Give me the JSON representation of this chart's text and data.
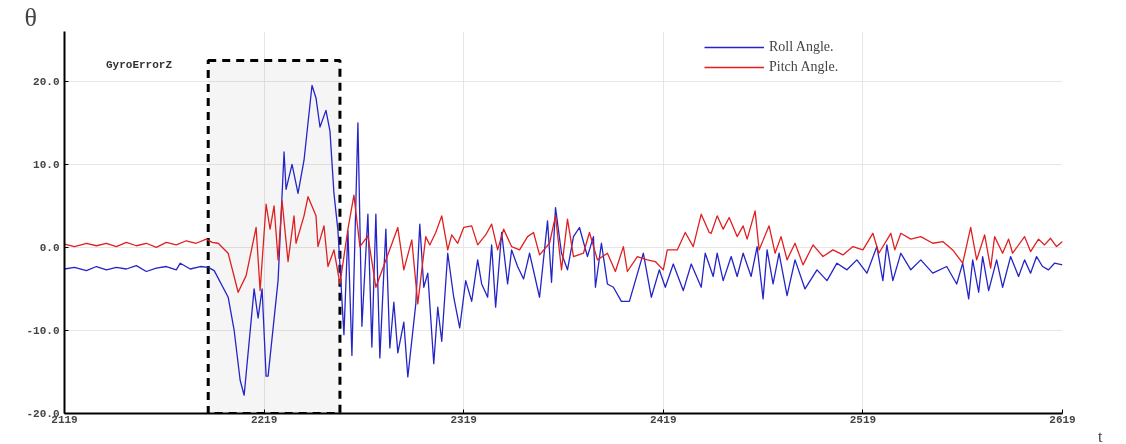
{
  "chart_data": {
    "type": "line",
    "xlabel": "t",
    "ylabel": "θ",
    "annotations": [
      "GyroErrorZ"
    ],
    "xlim": [
      2119,
      2619
    ],
    "ylim": [
      -20,
      26
    ],
    "xticks": [
      2119,
      2219,
      2319,
      2419,
      2519,
      2619
    ],
    "yticks": [
      {
        "value": -20,
        "label": "-20.0"
      },
      {
        "value": -10,
        "label": "-10.0"
      },
      {
        "value": 0,
        "label": "0.0"
      },
      {
        "value": 10,
        "label": "10.0"
      },
      {
        "value": 20,
        "label": "20.0"
      }
    ],
    "grid": true,
    "legend": "top",
    "line_style": "solid",
    "bands": [
      {
        "axis": "x",
        "from": 2191,
        "to": 2257,
        "color": "#000000"
      }
    ],
    "series": [
      {
        "name": "Roll Angle.",
        "color": "#2424c8",
        "x": [
          2119,
          2124,
          2130,
          2135,
          2140,
          2145,
          2150,
          2155,
          2160,
          2165,
          2170,
          2175,
          2177,
          2182,
          2187,
          2191,
          2194,
          2201,
          2204,
          2207,
          2209,
          2214,
          2216,
          2218,
          2220,
          2221,
          2226,
          2229,
          2230,
          2233,
          2236,
          2239,
          2243,
          2245,
          2247,
          2250,
          2252,
          2254,
          2256,
          2259,
          2261,
          2263,
          2266,
          2268,
          2271,
          2273,
          2275,
          2277,
          2280,
          2282,
          2284,
          2286,
          2289,
          2291,
          2295,
          2297,
          2299,
          2301,
          2304,
          2306,
          2308,
          2311,
          2314,
          2317,
          2320,
          2323,
          2326,
          2328,
          2331,
          2333,
          2335,
          2338,
          2341,
          2343,
          2346,
          2349,
          2352,
          2357,
          2361,
          2363,
          2365,
          2368,
          2371,
          2374,
          2377,
          2381,
          2384,
          2385,
          2388,
          2391,
          2394,
          2398,
          2402,
          2409,
          2413,
          2417,
          2420,
          2424,
          2429,
          2433,
          2438,
          2440,
          2444,
          2446,
          2449,
          2453,
          2456,
          2459,
          2463,
          2466,
          2469,
          2471,
          2474,
          2477,
          2481,
          2485,
          2490,
          2496,
          2501,
          2506,
          2511,
          2516,
          2521,
          2526,
          2529,
          2531,
          2534,
          2538,
          2543,
          2548,
          2554,
          2561,
          2566,
          2569,
          2572,
          2574,
          2577,
          2579,
          2582,
          2586,
          2589,
          2593,
          2597,
          2600,
          2603,
          2606,
          2609,
          2612,
          2615,
          2619
        ],
        "values": [
          -2.6,
          -2.4,
          -2.8,
          -2.3,
          -2.7,
          -2.4,
          -2.6,
          -2.2,
          -2.9,
          -2.5,
          -2.3,
          -2.7,
          -1.9,
          -2.6,
          -2.3,
          -2.4,
          -2.8,
          -6,
          -10,
          -16,
          -17.8,
          -5,
          -8.5,
          -5,
          -15.5,
          -15.5,
          -4,
          11.5,
          7,
          10,
          6.5,
          10.5,
          19.5,
          18,
          14.5,
          16.5,
          14,
          6.5,
          2,
          -10.5,
          2,
          -13,
          15,
          -9.5,
          4,
          -12,
          4,
          -13.3,
          2.2,
          -12.1,
          -6.6,
          -12.7,
          -9,
          -15.6,
          -6.8,
          2.8,
          -4.8,
          -3.1,
          -14,
          -7.2,
          -11.3,
          -0.7,
          -6,
          -9.7,
          -4,
          -6.5,
          -1.5,
          -4.4,
          -6,
          0.3,
          -7.2,
          1.8,
          -4.4,
          -0.3,
          -2.3,
          -3.8,
          -0.7,
          -6,
          3.2,
          -4.2,
          4.8,
          -0.7,
          -2.7,
          1.3,
          2.4,
          -1.1,
          1.3,
          -4.8,
          0.5,
          -4.4,
          -4.8,
          -6.5,
          -6.5,
          -0.7,
          -6,
          -2.7,
          -4.8,
          -2,
          -5.2,
          -2,
          -4.8,
          -0.7,
          -3.5,
          -0.7,
          -4,
          -1.1,
          -3.5,
          -0.7,
          -3.5,
          0.1,
          -6.2,
          -0.3,
          -4.4,
          -0.7,
          -5.8,
          -1.5,
          -5,
          -2.7,
          -4,
          -1.9,
          -2.7,
          -1.5,
          -3.1,
          0.1,
          -4,
          0.3,
          -4,
          -0.7,
          -2.7,
          -1.5,
          -3.1,
          -2.3,
          -4.4,
          -1.9,
          -6.2,
          -1.5,
          -5.4,
          -1.1,
          -5.2,
          -1.5,
          -4.8,
          -1.1,
          -3.5,
          -1.5,
          -3.1,
          -1.1,
          -2.3,
          -2.7,
          -1.9,
          -2.1
        ]
      },
      {
        "name": "Pitch Angle.",
        "color": "#e02020",
        "x": [
          2119,
          2124,
          2130,
          2135,
          2140,
          2145,
          2150,
          2155,
          2160,
          2165,
          2170,
          2175,
          2180,
          2185,
          2190,
          2193,
          2196,
          2201,
          2206,
          2210,
          2215,
          2217,
          2220,
          2222,
          2224,
          2226,
          2228,
          2231,
          2234,
          2235,
          2239,
          2241,
          2245,
          2246,
          2249,
          2251,
          2254,
          2257,
          2261,
          2264,
          2267,
          2271,
          2275,
          2286,
          2289,
          2293,
          2296,
          2300,
          2302,
          2305,
          2308,
          2311,
          2313,
          2316,
          2319,
          2323,
          2326,
          2330,
          2333,
          2336,
          2339,
          2343,
          2347,
          2351,
          2354,
          2357,
          2362,
          2365,
          2368,
          2371,
          2374,
          2379,
          2382,
          2386,
          2391,
          2395,
          2399,
          2401,
          2406,
          2411,
          2415,
          2419,
          2421,
          2426,
          2430,
          2434,
          2438,
          2442,
          2443,
          2446,
          2449,
          2452,
          2456,
          2459,
          2461,
          2465,
          2467,
          2472,
          2475,
          2478,
          2481,
          2485,
          2489,
          2494,
          2499,
          2504,
          2509,
          2514,
          2519,
          2524,
          2527,
          2533,
          2535,
          2538,
          2543,
          2548,
          2554,
          2559,
          2564,
          2569,
          2573,
          2576,
          2580,
          2583,
          2585,
          2589,
          2592,
          2594,
          2600,
          2603,
          2607,
          2610,
          2613,
          2616,
          2619
        ],
        "values": [
          0.4,
          0.1,
          0.5,
          0.2,
          0.5,
          0.1,
          0.6,
          0.2,
          0.5,
          0,
          0.6,
          0.3,
          0.8,
          0.5,
          1,
          0.6,
          0.5,
          -0.7,
          -5.4,
          -3.4,
          2.4,
          -5.2,
          5.2,
          2.2,
          5,
          -1.5,
          5.6,
          -1.7,
          3.8,
          0.5,
          3.8,
          6.1,
          3.8,
          0.1,
          2.6,
          -2.3,
          -0.3,
          -4.4,
          2.2,
          6.3,
          0.1,
          1.4,
          -4.8,
          2.4,
          -2.7,
          0.9,
          -6.8,
          1.3,
          0.3,
          1.8,
          3.8,
          -0.3,
          1.5,
          0.5,
          2.4,
          2.6,
          0.3,
          1.5,
          2.8,
          -0.3,
          2.2,
          0.1,
          -0.3,
          1.3,
          1.8,
          -0.9,
          0.5,
          3.8,
          -2.7,
          3.4,
          -1.1,
          -0.7,
          1.8,
          -1.5,
          -0.7,
          -2.9,
          0.1,
          -2.9,
          -1.1,
          -1.5,
          -1.7,
          -2.7,
          -0.3,
          -0.3,
          1.8,
          0.1,
          4,
          1.8,
          1.7,
          3.8,
          2.2,
          3.6,
          1.3,
          2.6,
          1,
          4.4,
          -0.3,
          2.6,
          -0.7,
          1.3,
          -1.5,
          0.5,
          -2.1,
          0.3,
          -1.1,
          -0.3,
          -0.9,
          0.1,
          -0.3,
          1.7,
          -0.7,
          1.7,
          -0.3,
          1.7,
          1,
          1.3,
          0.5,
          0.7,
          -0.3,
          -1.9,
          2.4,
          -1.5,
          1.5,
          -2.5,
          1.3,
          -0.7,
          1,
          -0.7,
          1.3,
          -0.5,
          1,
          0.3,
          1.1,
          0.1,
          0.7
        ]
      }
    ]
  }
}
